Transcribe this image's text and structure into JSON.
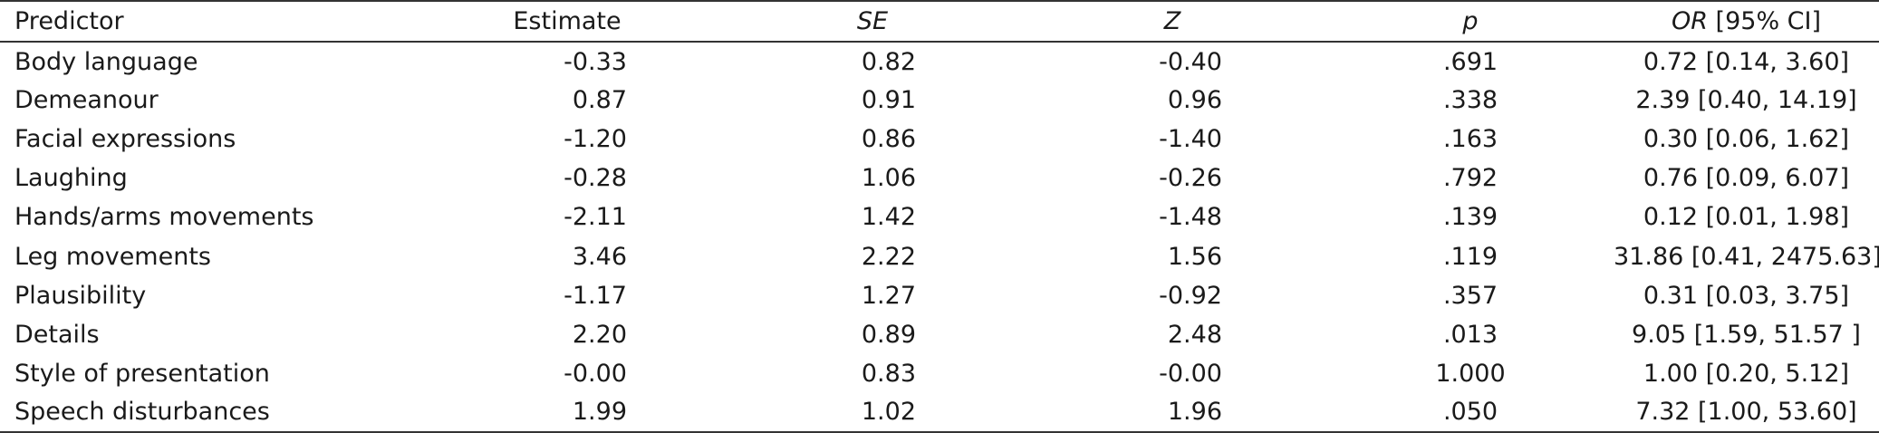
{
  "table": {
    "headers": {
      "predictor": "Predictor",
      "estimate": "Estimate",
      "se": "SE",
      "z": "Z",
      "p": "p",
      "or_italic": "OR",
      "or_rest": " [95% CI]"
    },
    "rows": [
      {
        "predictor": "Body language",
        "estimate": "-0.33",
        "se": "0.82",
        "z": "-0.40",
        "p": ".691",
        "or": "0.72 [0.14, 3.60]"
      },
      {
        "predictor": "Demeanour",
        "estimate": "0.87",
        "se": "0.91",
        "z": "0.96",
        "p": ".338",
        "or": "2.39 [0.40, 14.19]"
      },
      {
        "predictor": "Facial expressions",
        "estimate": "-1.20",
        "se": "0.86",
        "z": "-1.40",
        "p": ".163",
        "or": "0.30 [0.06, 1.62]"
      },
      {
        "predictor": "Laughing",
        "estimate": "-0.28",
        "se": "1.06",
        "z": "-0.26",
        "p": ".792",
        "or": "0.76 [0.09, 6.07]"
      },
      {
        "predictor": "Hands/arms movements",
        "estimate": "-2.11",
        "se": "1.42",
        "z": "-1.48",
        "p": ".139",
        "or": "0.12 [0.01, 1.98]"
      },
      {
        "predictor": "Leg movements",
        "estimate": "3.46",
        "se": "2.22",
        "z": "1.56",
        "p": ".119",
        "or": "31.86 [0.41, 2475.63]"
      },
      {
        "predictor": "Plausibility",
        "estimate": "-1.17",
        "se": "1.27",
        "z": "-0.92",
        "p": ".357",
        "or": "0.31 [0.03, 3.75]"
      },
      {
        "predictor": "Details",
        "estimate": "2.20",
        "se": "0.89",
        "z": "2.48",
        "p": ".013",
        "or": "9.05 [1.59, 51.57 ]"
      },
      {
        "predictor": "Style of presentation",
        "estimate": "-0.00",
        "se": "0.83",
        "z": "-0.00",
        "p": "1.000",
        "or": "1.00 [0.20, 5.12]"
      },
      {
        "predictor": "Speech disturbances",
        "estimate": "1.99",
        "se": "1.02",
        "z": "1.96",
        "p": ".050",
        "or": "7.32 [1.00, 53.60]"
      }
    ]
  }
}
